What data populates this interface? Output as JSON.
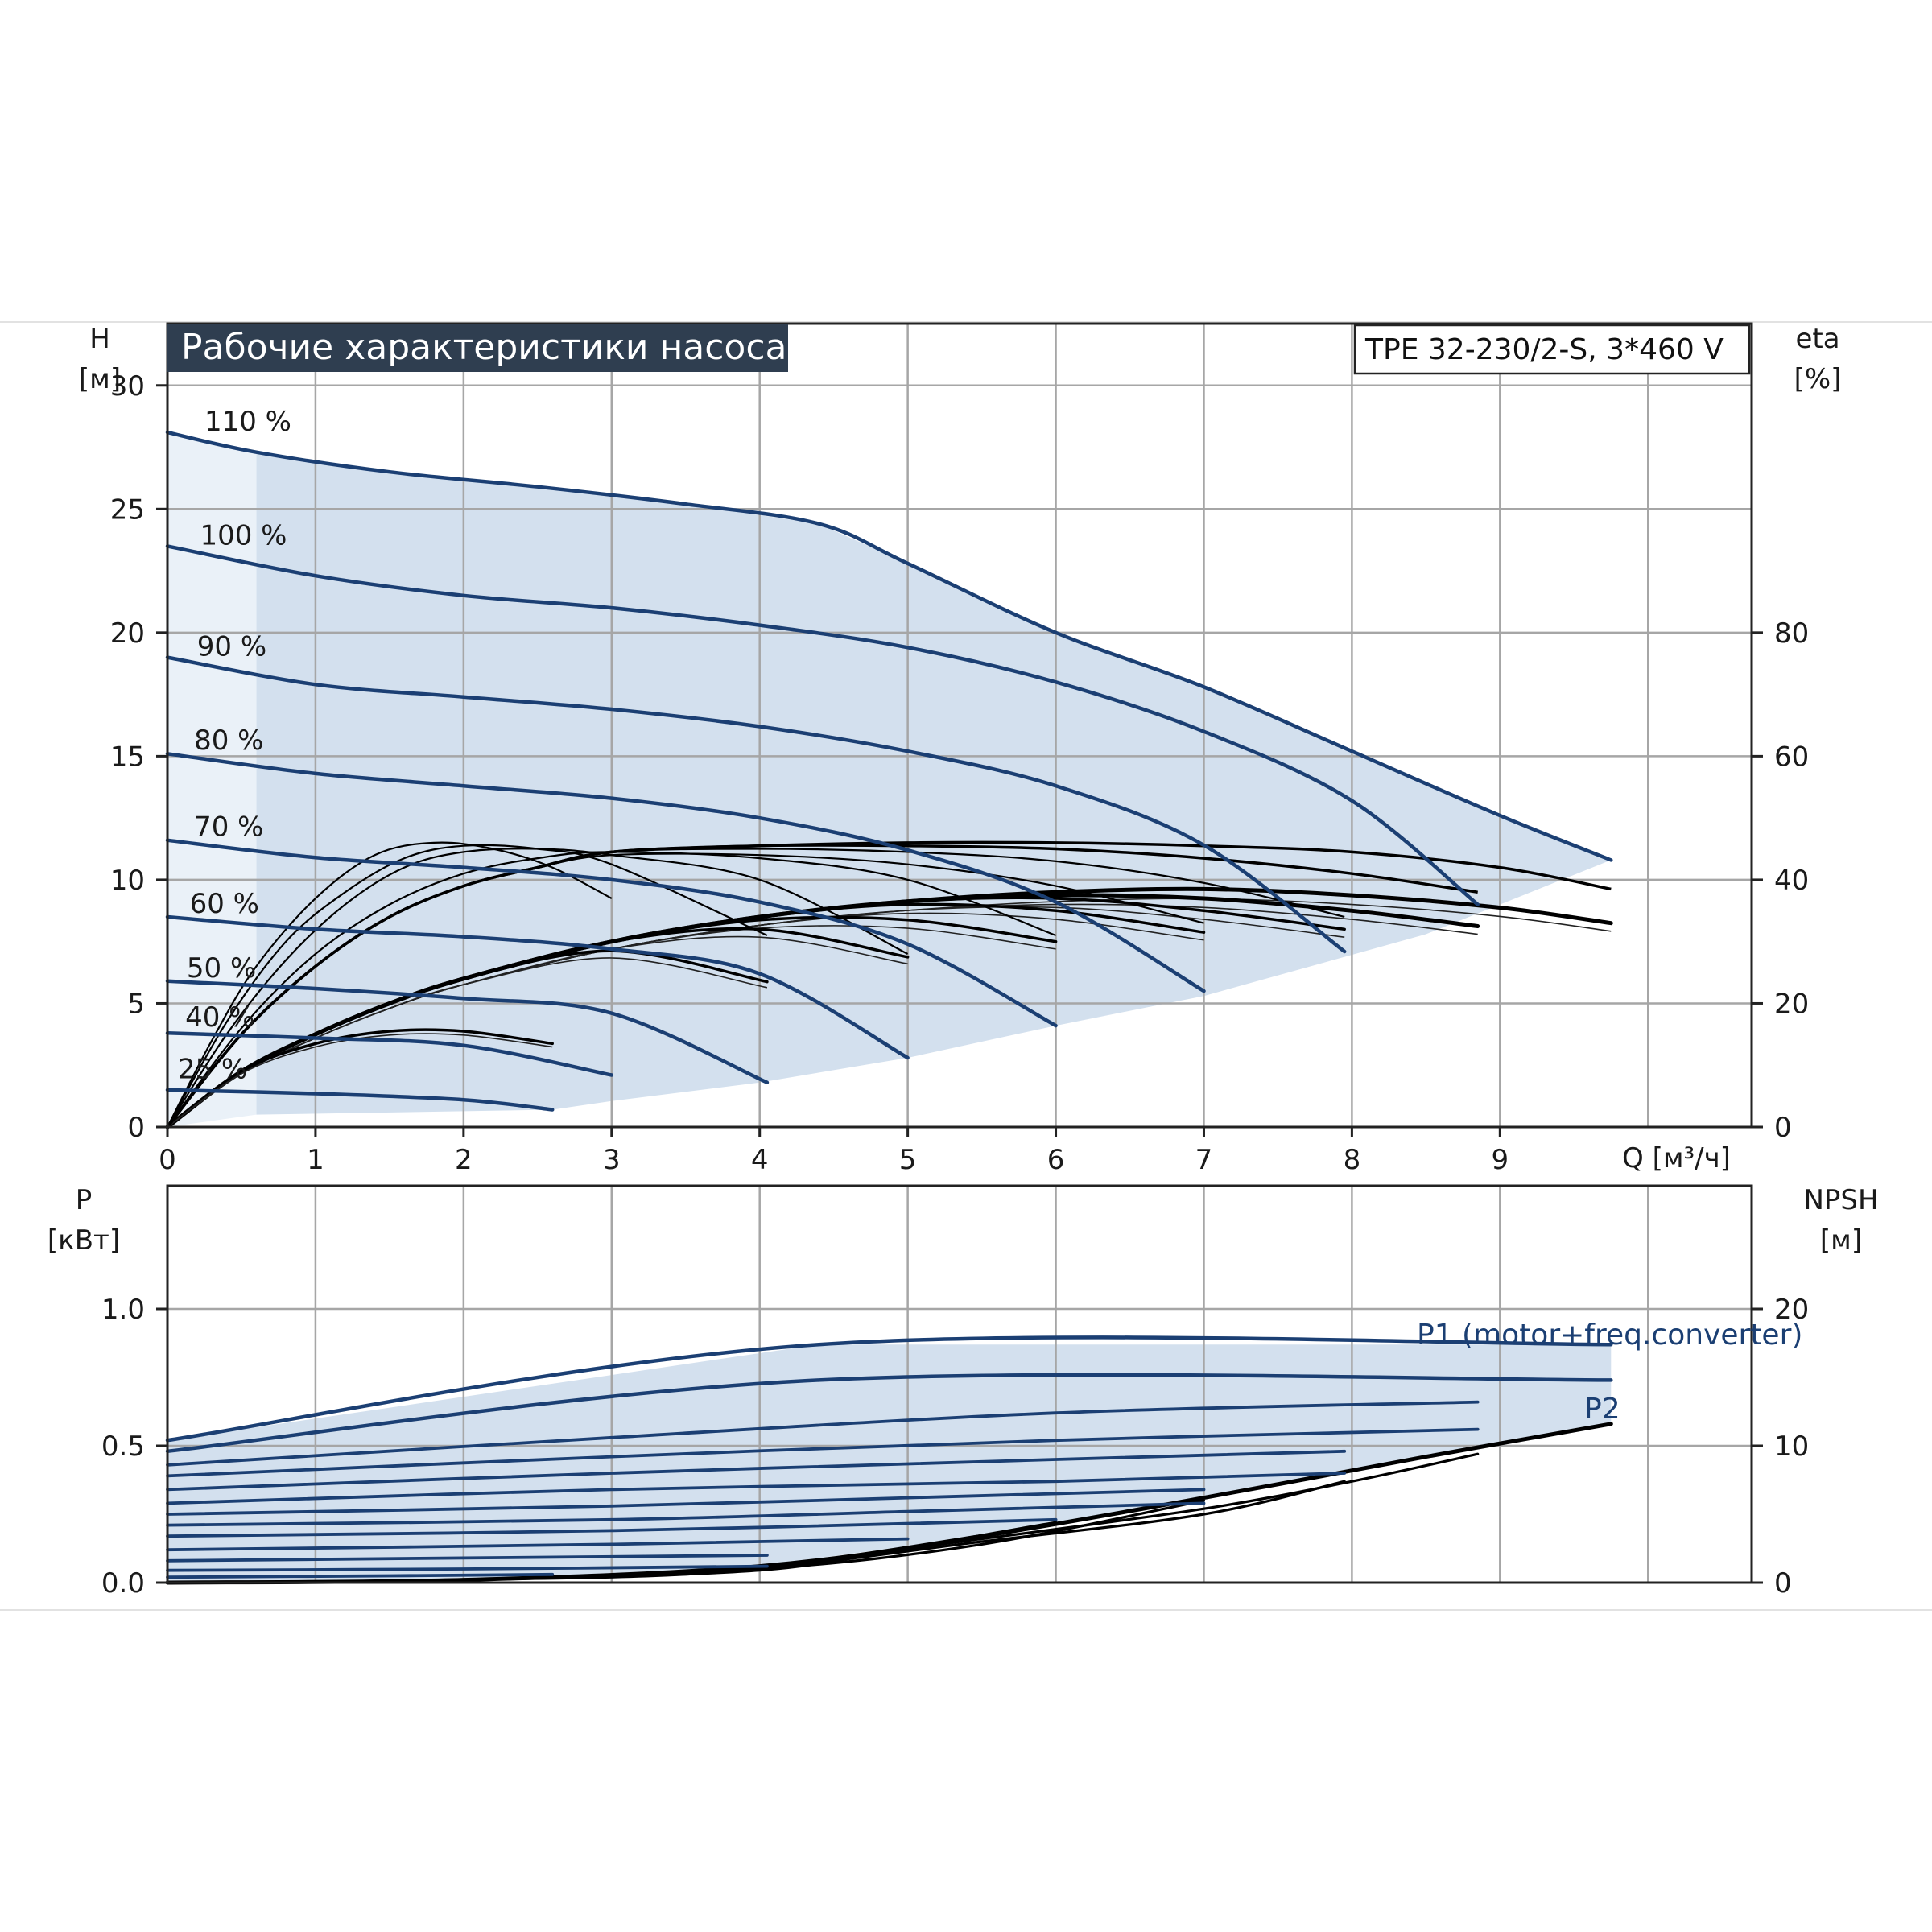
{
  "chart_data": [
    {
      "type": "line",
      "title": "Рабочие характеристики насоса",
      "model": "TPE 32-230/2-S, 3*460 V",
      "xlabel": "Q [м³/ч]",
      "ylabel_top": "H",
      "ylabel_bottom": "[м]",
      "y2label_top": "eta",
      "y2label_bottom": "[%]",
      "xlim": [
        0,
        10.7
      ],
      "ylim": [
        0,
        32.5
      ],
      "y2lim": [
        0,
        130
      ],
      "xticks": [
        "0",
        "1",
        "2",
        "3",
        "4",
        "5",
        "6",
        "7",
        "8",
        "9"
      ],
      "yticks": [
        "0",
        "5",
        "10",
        "15",
        "20",
        "25",
        "30"
      ],
      "y2ticks": [
        "0",
        "20",
        "40",
        "60",
        "80"
      ],
      "colors": {
        "head": "#1b3f73",
        "eta": "#000000",
        "area": "#d3e0ee",
        "title_bg": "#2f3e50"
      },
      "head_series": [
        {
          "name": "110 %",
          "x": [
            0,
            0.6,
            1.5,
            2.5,
            3.5,
            4.4,
            5.0,
            6.0,
            7.0,
            8.0,
            9.0,
            9.75
          ],
          "y": [
            28.1,
            27.3,
            26.5,
            25.9,
            25.2,
            24.4,
            22.8,
            20.0,
            17.8,
            15.2,
            12.6,
            10.8
          ]
        },
        {
          "name": "100 %",
          "x": [
            0,
            1,
            2,
            3,
            4,
            5,
            6,
            7,
            8,
            8.85
          ],
          "y": [
            23.5,
            22.3,
            21.5,
            21.0,
            20.3,
            19.4,
            18.0,
            16.0,
            13.2,
            9.0
          ]
        },
        {
          "name": "90 %",
          "x": [
            0,
            1,
            2,
            3,
            4,
            5,
            6,
            7,
            7.95
          ],
          "y": [
            19.0,
            17.9,
            17.4,
            16.9,
            16.2,
            15.2,
            13.8,
            11.4,
            7.1
          ]
        },
        {
          "name": "80 %",
          "x": [
            0,
            1,
            2,
            3,
            4,
            5,
            6,
            7.0
          ],
          "y": [
            15.1,
            14.3,
            13.8,
            13.3,
            12.5,
            11.2,
            9.1,
            5.5
          ]
        },
        {
          "name": "70 %",
          "x": [
            0,
            1,
            2,
            3,
            4,
            5,
            6.0
          ],
          "y": [
            11.6,
            10.9,
            10.5,
            10.0,
            9.1,
            7.4,
            4.1
          ]
        },
        {
          "name": "60 %",
          "x": [
            0,
            1,
            2,
            3,
            4,
            5.0
          ],
          "y": [
            8.5,
            8.0,
            7.7,
            7.2,
            6.2,
            2.8
          ]
        },
        {
          "name": "50 %",
          "x": [
            0,
            1,
            2,
            3,
            4.05
          ],
          "y": [
            5.9,
            5.6,
            5.2,
            4.6,
            1.8
          ]
        },
        {
          "name": "40 %",
          "x": [
            0,
            1,
            2,
            3.0
          ],
          "y": [
            3.8,
            3.6,
            3.3,
            2.1
          ]
        },
        {
          "name": "25 %",
          "x": [
            0,
            1,
            2,
            2.6
          ],
          "y": [
            1.5,
            1.35,
            1.1,
            0.7
          ]
        }
      ],
      "eta_series": [
        {
          "x": [
            0,
            0.5,
            1,
            1.5,
            2,
            3,
            4,
            5,
            6,
            7,
            8,
            9,
            9.75
          ],
          "y": [
            0,
            9,
            15,
            20,
            24,
            30,
            34,
            36.5,
            38,
            38.5,
            37.5,
            35.5,
            33
          ]
        },
        {
          "x": [
            0,
            0.5,
            1,
            1.5,
            2,
            3,
            4,
            5,
            6,
            7,
            8,
            8.85
          ],
          "y": [
            0,
            9,
            15,
            20,
            24,
            30,
            34,
            36.5,
            37.5,
            37,
            35,
            32.5
          ]
        },
        {
          "x": [
            0,
            0.5,
            1,
            1.5,
            2,
            3,
            4,
            5,
            6,
            7,
            7.95
          ],
          "y": [
            0,
            9,
            15,
            20,
            24,
            30,
            34,
            36.5,
            37,
            35,
            32
          ]
        },
        {
          "x": [
            0,
            0.5,
            1,
            1.5,
            2,
            3,
            4,
            5,
            6,
            7.0
          ],
          "y": [
            0,
            9,
            15,
            20,
            24,
            30,
            34,
            36,
            35,
            31.5
          ]
        },
        {
          "x": [
            0,
            0.5,
            1,
            1.5,
            2,
            3,
            4,
            5,
            6.0
          ],
          "y": [
            0,
            9,
            15,
            20,
            24,
            30,
            33.5,
            33.5,
            30
          ]
        },
        {
          "x": [
            0,
            0.5,
            1,
            1.5,
            2,
            3,
            4,
            5.0
          ],
          "y": [
            0,
            9,
            15,
            20,
            24,
            30,
            32,
            27.5
          ]
        },
        {
          "x": [
            0,
            0.5,
            1,
            1.5,
            2,
            3,
            4.05
          ],
          "y": [
            0,
            9,
            15,
            20,
            24,
            28.5,
            23.5
          ]
        },
        {
          "x": [
            0,
            0.5,
            1,
            1.5,
            2,
            2.6
          ],
          "y": [
            0,
            9,
            13.5,
            15.5,
            15.5,
            13.5
          ]
        }
      ],
      "eta_top_series": [
        {
          "x": [
            0,
            0.5,
            1,
            1.5,
            2,
            2.5,
            3,
            4,
            5,
            6,
            7,
            8,
            9,
            9.75
          ],
          "y": [
            0,
            15,
            26,
            34,
            39,
            42,
            44.5,
            45.5,
            46,
            46,
            45.5,
            44.5,
            42,
            38.5
          ]
        },
        {
          "x": [
            0,
            0.5,
            1,
            1.5,
            2,
            2.5,
            3,
            4,
            5,
            6,
            7,
            8,
            8.85
          ],
          "y": [
            0,
            15,
            26,
            34,
            39,
            42,
            44.5,
            45.5,
            45.5,
            45,
            43.5,
            41,
            38
          ]
        },
        {
          "x": [
            0,
            0.5,
            1,
            1.5,
            2,
            2.5,
            3,
            4,
            5,
            6,
            7,
            7.95
          ],
          "y": [
            0,
            15,
            26,
            34,
            39,
            42,
            44.5,
            45,
            44.5,
            43,
            39.5,
            34
          ]
        },
        {
          "x": [
            0,
            0.5,
            1,
            1.5,
            2,
            2.5,
            3,
            4,
            5,
            6,
            7.0
          ],
          "y": [
            0,
            15,
            26,
            34,
            39,
            42,
            44,
            44,
            42.5,
            39,
            33
          ]
        },
        {
          "x": [
            0,
            0.5,
            1,
            1.5,
            2,
            2.5,
            3,
            4,
            5,
            6.0
          ],
          "y": [
            0,
            16,
            28,
            36,
            41,
            43.5,
            44.5,
            43.5,
            40,
            31
          ]
        },
        {
          "x": [
            0,
            0.4,
            0.8,
            1.2,
            1.6,
            2,
            2.5,
            3,
            4,
            5.0
          ],
          "y": [
            0,
            15,
            27,
            36,
            42,
            44.5,
            45,
            44,
            40,
            28
          ]
        },
        {
          "x": [
            0,
            0.4,
            0.8,
            1.2,
            1.6,
            2,
            2.5,
            3,
            4.05
          ],
          "y": [
            0,
            17,
            30,
            38,
            43.5,
            45.5,
            45,
            42.5,
            31
          ]
        },
        {
          "x": [
            0,
            0.3,
            0.6,
            1.0,
            1.4,
            1.8,
            2.2,
            2.6,
            3.0
          ],
          "y": [
            0,
            14,
            26,
            37,
            44,
            46,
            45,
            42,
            37
          ]
        }
      ]
    },
    {
      "type": "line",
      "ylabel_top": "P",
      "ylabel_bottom": "[кВт]",
      "y2label_top": "NPSH",
      "y2label_bottom": "[м]",
      "xlim": [
        0,
        10.7
      ],
      "ylim": [
        0,
        1.45
      ],
      "y2lim": [
        0,
        29
      ],
      "yticks": [
        "0.0",
        "0.5",
        "1.0"
      ],
      "y2ticks": [
        "0",
        "10",
        "20"
      ],
      "annotations": [
        "P1 (motor+freq.converter)",
        "P2"
      ],
      "p1_series": [
        {
          "x": [
            0,
            4.4,
            9.75
          ],
          "y": [
            0.52,
            0.87,
            0.87
          ]
        },
        {
          "x": [
            0,
            4.4,
            9.75
          ],
          "y": [
            0.48,
            0.74,
            0.74
          ]
        },
        {
          "x": [
            0,
            3,
            6,
            8.85
          ],
          "y": [
            0.43,
            0.53,
            0.62,
            0.66
          ]
        },
        {
          "x": [
            0,
            3,
            6,
            8.85
          ],
          "y": [
            0.39,
            0.46,
            0.52,
            0.56
          ]
        },
        {
          "x": [
            0,
            3,
            6,
            7.95
          ],
          "y": [
            0.34,
            0.4,
            0.45,
            0.48
          ]
        },
        {
          "x": [
            0,
            3,
            6,
            7.95
          ],
          "y": [
            0.29,
            0.34,
            0.37,
            0.4
          ]
        },
        {
          "x": [
            0,
            3,
            5,
            7.0
          ],
          "y": [
            0.25,
            0.28,
            0.31,
            0.34
          ]
        },
        {
          "x": [
            0,
            3,
            5,
            7.0
          ],
          "y": [
            0.21,
            0.23,
            0.26,
            0.29
          ]
        },
        {
          "x": [
            0,
            3,
            6.0
          ],
          "y": [
            0.17,
            0.19,
            0.23
          ]
        },
        {
          "x": [
            0,
            3,
            5.0
          ],
          "y": [
            0.12,
            0.14,
            0.16
          ]
        },
        {
          "x": [
            0,
            2,
            4.05
          ],
          "y": [
            0.08,
            0.09,
            0.1
          ]
        },
        {
          "x": [
            0,
            2,
            4.05
          ],
          "y": [
            0.045,
            0.05,
            0.06
          ]
        },
        {
          "x": [
            0,
            1.5,
            2.6
          ],
          "y": [
            0.02,
            0.025,
            0.03
          ]
        }
      ],
      "p2_series": [
        {
          "x": [
            0,
            2,
            4,
            5.5,
            7,
            8.5,
            9.75
          ],
          "y": [
            0.0,
            0.01,
            0.06,
            0.17,
            0.31,
            0.46,
            0.58
          ]
        },
        {
          "x": [
            0,
            2,
            4,
            5.5,
            7,
            8,
            8.85
          ],
          "y": [
            0.0,
            0.01,
            0.06,
            0.16,
            0.27,
            0.37,
            0.47
          ]
        },
        {
          "x": [
            0,
            2,
            4,
            5.5,
            7,
            7.95
          ],
          "y": [
            0.0,
            0.01,
            0.055,
            0.15,
            0.25,
            0.37
          ]
        },
        {
          "x": [
            0,
            2,
            4,
            5.5,
            7.0
          ],
          "y": [
            0.0,
            0.01,
            0.05,
            0.14,
            0.3
          ]
        },
        {
          "x": [
            0,
            2,
            4,
            6.0
          ],
          "y": [
            0.0,
            0.01,
            0.05,
            0.22
          ]
        },
        {
          "x": [
            0,
            2,
            4,
            5.0
          ],
          "y": [
            0.0,
            0.01,
            0.045,
            0.13
          ]
        },
        {
          "x": [
            0,
            2,
            4.05
          ],
          "y": [
            0.0,
            0.01,
            0.05
          ]
        },
        {
          "x": [
            0,
            1.5,
            2.6
          ],
          "y": [
            0.0,
            0.005,
            0.02
          ]
        }
      ]
    }
  ]
}
